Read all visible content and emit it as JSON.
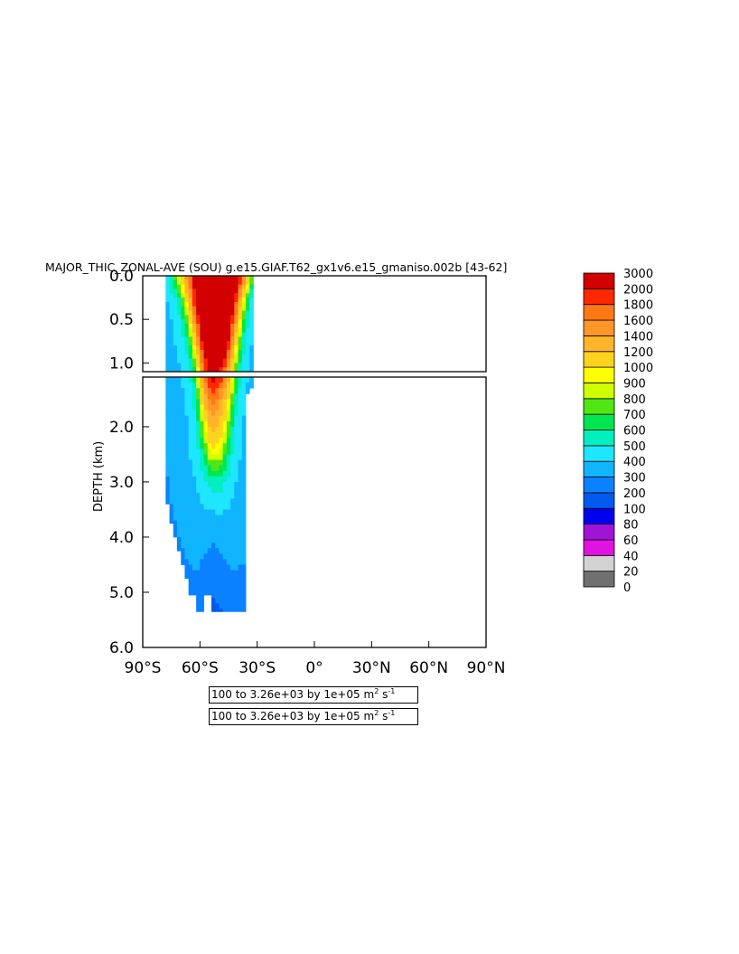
{
  "title": "MAJOR_THIC_ZONAL-AVE (SOU) g.e15.GIAF.T62_gx1v6.e15_gmaniso.002b [43-62]",
  "chart_data": {
    "type": "heatmap",
    "title": "MAJOR_THIC_ZONAL-AVE (SOU) g.e15.GIAF.T62_gx1v6.e15_gmaniso.002b [43-62]",
    "ylabel": "DEPTH (km)",
    "xlabel": "",
    "x_tick_labels": [
      "90°S",
      "60°S",
      "30°S",
      "0°",
      "30°N",
      "60°N",
      "90°N"
    ],
    "x_ticks": [
      -90,
      -60,
      -30,
      0,
      30,
      60,
      90
    ],
    "xlim": [
      -90,
      90
    ],
    "upper_panel": {
      "ylim": [
        0,
        1.1
      ],
      "y_ticks": [
        0.0,
        0.5,
        1.0
      ],
      "y_tick_labels": [
        "0.0",
        "0.5",
        "1.0"
      ]
    },
    "lower_panel": {
      "ylim": [
        1.1,
        6.0
      ],
      "y_ticks": [
        2.0,
        3.0,
        4.0,
        5.0,
        6.0
      ],
      "y_tick_labels": [
        "2.0",
        "3.0",
        "4.0",
        "5.0",
        "6.0"
      ]
    },
    "y_reversed": true,
    "colorbar": {
      "levels": [
        "0",
        "20",
        "40",
        "60",
        "80",
        "100",
        "200",
        "300",
        "400",
        "500",
        "600",
        "700",
        "800",
        "900",
        "1000",
        "1200",
        "1400",
        "1600",
        "1800",
        "2000",
        "3000"
      ],
      "colors": [
        "#707070",
        "#d2d2d2",
        "#e014e0",
        "#a014d8",
        "#0000f0",
        "#005af0",
        "#0a82ff",
        "#10b4ff",
        "#1ee6ff",
        "#00f0c0",
        "#00e650",
        "#50e614",
        "#d2ff00",
        "#ffff00",
        "#ffd21e",
        "#ffb42a",
        "#ff9628",
        "#ff7814",
        "#ff2800",
        "#d20000"
      ]
    },
    "field_depth_km": [
      0,
      0.15,
      0.3,
      0.6,
      0.9,
      1.1,
      1.5,
      2.0,
      2.5,
      3.0,
      3.5,
      4.0,
      4.5,
      5.0,
      5.4
    ],
    "field_lat_deg": [
      -78,
      -74,
      -70,
      -66,
      -62,
      -58,
      -54,
      -50,
      -46,
      -42,
      -38,
      -34,
      -32
    ],
    "field_values": [
      [
        450,
        650,
        1000,
        1600,
        2300,
        3000,
        3000,
        3000,
        3000,
        2600,
        1800,
        1000,
        650
      ],
      [
        420,
        550,
        800,
        1400,
        2200,
        3000,
        3000,
        3000,
        3000,
        2400,
        1400,
        700,
        500
      ],
      [
        380,
        430,
        600,
        1100,
        2100,
        3000,
        3000,
        3000,
        2800,
        2100,
        1000,
        520,
        420
      ],
      [
        360,
        400,
        460,
        700,
        1500,
        2500,
        3000,
        3000,
        2500,
        1500,
        700,
        430,
        400
      ],
      [
        340,
        380,
        420,
        520,
        950,
        2000,
        2600,
        2500,
        2000,
        1000,
        520,
        400,
        380
      ],
      [
        330,
        360,
        400,
        450,
        700,
        1600,
        2200,
        2000,
        1500,
        800,
        450,
        390,
        370
      ],
      [
        320,
        350,
        380,
        420,
        550,
        1200,
        1700,
        1500,
        1100,
        600,
        420,
        380,
        360
      ],
      [
        310,
        340,
        370,
        400,
        480,
        850,
        1300,
        1200,
        850,
        500,
        400,
        370,
        350
      ],
      [
        300,
        330,
        360,
        390,
        440,
        620,
        900,
        900,
        650,
        450,
        390,
        360,
        350
      ],
      [
        290,
        320,
        350,
        370,
        400,
        470,
        560,
        560,
        480,
        410,
        370,
        350,
        340
      ],
      [
        280,
        300,
        330,
        350,
        370,
        390,
        400,
        420,
        400,
        380,
        350,
        340,
        330
      ],
      [
        250,
        280,
        310,
        330,
        340,
        330,
        310,
        320,
        340,
        340,
        330,
        320,
        310
      ],
      [
        200,
        250,
        280,
        300,
        310,
        290,
        260,
        280,
        300,
        310,
        300,
        290,
        280
      ],
      [
        150,
        190,
        230,
        260,
        270,
        240,
        210,
        230,
        250,
        270,
        260,
        250,
        240
      ],
      [
        120,
        150,
        180,
        200,
        210,
        190,
        170,
        180,
        200,
        210,
        200,
        190,
        180
      ]
    ],
    "max_depth_km_by_lat": [
      [
        -78,
        0.8
      ],
      [
        -76,
        3.4
      ],
      [
        -74,
        3.75
      ],
      [
        -72,
        4.0
      ],
      [
        -70,
        4.25
      ],
      [
        -68,
        4.5
      ],
      [
        -66,
        4.75
      ],
      [
        -64,
        5.05
      ],
      [
        -62,
        5.05
      ],
      [
        -60,
        5.35
      ],
      [
        -58,
        5.35
      ],
      [
        -56,
        5.05
      ],
      [
        -54,
        5.05
      ],
      [
        -52,
        5.35
      ],
      [
        -50,
        5.35
      ],
      [
        -48,
        5.35
      ],
      [
        -46,
        5.35
      ],
      [
        -44,
        5.35
      ],
      [
        -42,
        5.35
      ],
      [
        -40,
        5.35
      ],
      [
        -38,
        5.35
      ],
      [
        -36,
        5.35
      ],
      [
        -34,
        1.4
      ],
      [
        -32,
        1.3
      ]
    ],
    "info_lines": [
      "100 to 3.26e+03 by 1e+05 m² s⁻¹",
      "100 to 3.26e+03 by 1e+05 m² s⁻¹"
    ]
  },
  "info_box_1": {
    "text": "100 to 3.26e+03 by 1e+05 m",
    "sup1": "2",
    "mid": " s",
    "sup2": "-1"
  },
  "info_box_2": {
    "text": "100 to 3.26e+03 by 1e+05 m",
    "sup1": "2",
    "mid": " s",
    "sup2": "-1"
  }
}
